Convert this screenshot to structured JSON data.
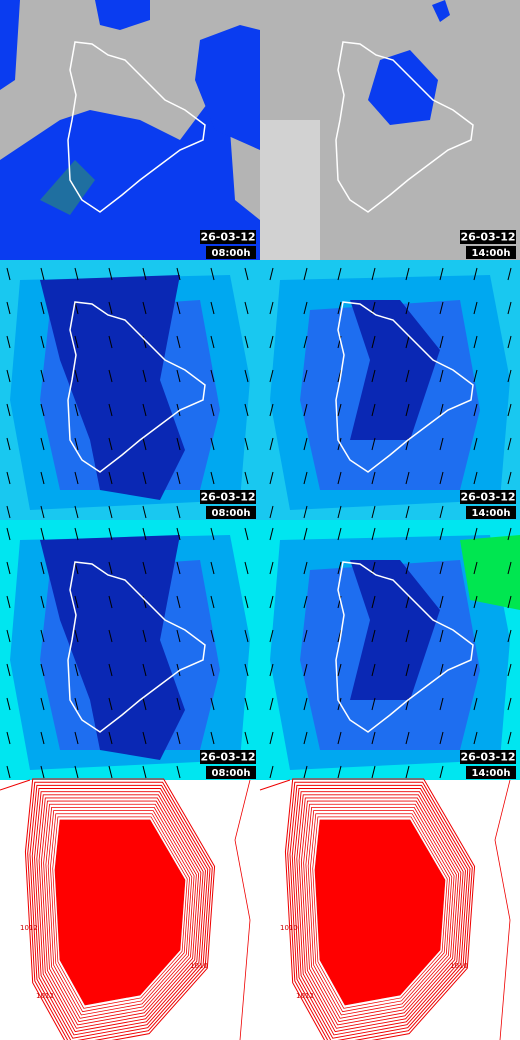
{
  "panels": [
    {
      "date": "26-03-12",
      "time": "08:00h"
    },
    {
      "date": "26-03-12",
      "time": "14:00h"
    },
    {
      "date": "26-03-12",
      "time": "08:00h"
    },
    {
      "date": "26-03-12",
      "time": "14:00h"
    },
    {
      "date": "26-03-12",
      "time": "08:00h"
    },
    {
      "date": "26-03-12",
      "time": "14:00h"
    }
  ],
  "contour_labels": [
    "1012",
    "1010",
    "1012",
    "1010",
    "1012",
    "1010"
  ]
}
